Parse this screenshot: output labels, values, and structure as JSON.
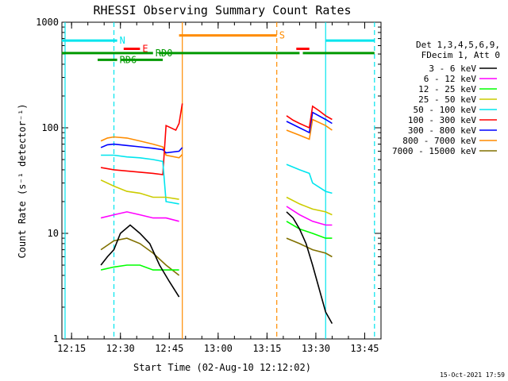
{
  "chart_data": {
    "type": "line",
    "title": "RHESSI Observing Summary Count Rates",
    "xlabel": "Start Time (02-Aug-10 12:12:02)",
    "ylabel": "Count Rate (s⁻¹ detector⁻¹)",
    "y_scale": "log",
    "ylim": [
      1,
      1000
    ],
    "xlim": [
      "12:12:02",
      "13:50:00"
    ],
    "x_ticks": [
      "12:15",
      "12:30",
      "12:45",
      "13:00",
      "13:15",
      "13:30",
      "13:45"
    ],
    "y_ticks": [
      "1",
      "10",
      "100",
      "1000"
    ],
    "legend_header": [
      "Det 1,3,4,5,6,9,",
      "FDecim 1, Att 0"
    ],
    "legend_position": "right",
    "footer_stamp": "15-Oct-2021 17:59",
    "flags": [
      {
        "label": "N",
        "color": "#00e5ee",
        "segments": [
          [
            "12:12",
            "12:29"
          ],
          [
            "13:33",
            "13:48"
          ]
        ],
        "y": 670
      },
      {
        "label": "E",
        "color": "#ff0000",
        "segments": [
          [
            "12:31",
            "12:36"
          ],
          [
            "13:24",
            "13:28"
          ]
        ],
        "y": 560
      },
      {
        "label": "S",
        "color": "#ff8c00",
        "segments": [
          [
            "12:48",
            "13:18"
          ]
        ],
        "y": 750
      },
      {
        "label": "RD0",
        "color": "#009900",
        "segments": [
          [
            "12:12",
            "12:40"
          ],
          [
            "12:42",
            "13:18"
          ],
          [
            "13:18",
            "13:25"
          ],
          [
            "13:26",
            "13:48"
          ]
        ],
        "y": 510
      },
      {
        "label": "RD6",
        "color": "#009900",
        "segments": [
          [
            "12:23",
            "12:29"
          ],
          [
            "12:30",
            "12:43"
          ]
        ],
        "y": 440
      }
    ],
    "vlines": [
      {
        "x": "12:13",
        "color": "#00e5ee",
        "style": "solid"
      },
      {
        "x": "12:28",
        "color": "#00e5ee",
        "style": "dashed"
      },
      {
        "x": "12:49",
        "color": "#ff8c00",
        "style": "solid"
      },
      {
        "x": "13:18",
        "color": "#ff8c00",
        "style": "dashed"
      },
      {
        "x": "13:33",
        "color": "#00e5ee",
        "style": "solid"
      },
      {
        "x": "13:48",
        "color": "#00e5ee",
        "style": "dashed"
      }
    ],
    "series": [
      {
        "name": "3 - 6 keV",
        "color": "#000000",
        "segments": [
          {
            "x": [
              "12:24",
              "12:26",
              "12:28",
              "12:30",
              "12:33",
              "12:36",
              "12:39",
              "12:42",
              "12:45",
              "12:48"
            ],
            "y": [
              5,
              6,
              7,
              10,
              12,
              10,
              8,
              5,
              3.5,
              2.5
            ]
          },
          {
            "x": [
              "13:21",
              "13:23",
              "13:25",
              "13:27",
              "13:29",
              "13:31",
              "13:33",
              "13:35"
            ],
            "y": [
              16,
              14,
              11,
              8,
              5,
              3,
              1.8,
              1.4
            ]
          }
        ]
      },
      {
        "name": "6 - 12 keV",
        "color": "#ff00ff",
        "segments": [
          {
            "x": [
              "12:24",
              "12:28",
              "12:32",
              "12:36",
              "12:40",
              "12:44",
              "12:48"
            ],
            "y": [
              14,
              15,
              16,
              15,
              14,
              14,
              13
            ]
          },
          {
            "x": [
              "13:21",
              "13:25",
              "13:29",
              "13:33",
              "13:35"
            ],
            "y": [
              18,
              15,
              13,
              12,
              12
            ]
          }
        ]
      },
      {
        "name": "12 - 25 keV",
        "color": "#00ff00",
        "segments": [
          {
            "x": [
              "12:24",
              "12:28",
              "12:32",
              "12:36",
              "12:40",
              "12:44",
              "12:48"
            ],
            "y": [
              4.5,
              4.8,
              5,
              5,
              4.5,
              4.5,
              4.5
            ]
          },
          {
            "x": [
              "13:21",
              "13:25",
              "13:29",
              "13:33",
              "13:35"
            ],
            "y": [
              13,
              11,
              10,
              9,
              9
            ]
          }
        ]
      },
      {
        "name": "25 - 50 keV",
        "color": "#cccc00",
        "segments": [
          {
            "x": [
              "12:24",
              "12:28",
              "12:32",
              "12:36",
              "12:40",
              "12:44",
              "12:48"
            ],
            "y": [
              32,
              28,
              25,
              24,
              22,
              22,
              21
            ]
          },
          {
            "x": [
              "13:21",
              "13:25",
              "13:29",
              "13:33",
              "13:35"
            ],
            "y": [
              22,
              19,
              17,
              16,
              15
            ]
          }
        ]
      },
      {
        "name": "50 - 100 keV",
        "color": "#00e5ee",
        "segments": [
          {
            "x": [
              "12:24",
              "12:28",
              "12:32",
              "12:36",
              "12:40",
              "12:43",
              "12:44",
              "12:48"
            ],
            "y": [
              55,
              55,
              53,
              52,
              50,
              48,
              20,
              19
            ]
          },
          {
            "x": [
              "13:21",
              "13:25",
              "13:28",
              "13:29",
              "13:33",
              "13:35"
            ],
            "y": [
              45,
              40,
              37,
              30,
              25,
              24
            ]
          }
        ]
      },
      {
        "name": "100 - 300 keV",
        "color": "#ff0000",
        "segments": [
          {
            "x": [
              "12:24",
              "12:28",
              "12:32",
              "12:36",
              "12:40",
              "12:43",
              "12:44",
              "12:47",
              "12:48",
              "12:49"
            ],
            "y": [
              42,
              40,
              39,
              38,
              37,
              36,
              105,
              95,
              110,
              170
            ]
          },
          {
            "x": [
              "13:21",
              "13:23",
              "13:25",
              "13:28",
              "13:29",
              "13:31",
              "13:33",
              "13:35"
            ],
            "y": [
              130,
              118,
              110,
              100,
              160,
              145,
              130,
              120
            ]
          }
        ]
      },
      {
        "name": "300 - 800 keV",
        "color": "#0000ff",
        "segments": [
          {
            "x": [
              "12:24",
              "12:26",
              "12:28",
              "12:32",
              "12:36",
              "12:40",
              "12:43",
              "12:44",
              "12:48",
              "12:49"
            ],
            "y": [
              65,
              69,
              70,
              68,
              66,
              64,
              62,
              58,
              60,
              65
            ]
          },
          {
            "x": [
              "13:21",
              "13:25",
              "13:28",
              "13:29",
              "13:33",
              "13:35"
            ],
            "y": [
              115,
              100,
              90,
              140,
              120,
              110
            ]
          }
        ]
      },
      {
        "name": "800 - 7000 keV",
        "color": "#ff8c00",
        "segments": [
          {
            "x": [
              "12:24",
              "12:26",
              "12:28",
              "12:32",
              "12:36",
              "12:40",
              "12:43",
              "12:44",
              "12:48",
              "12:49"
            ],
            "y": [
              75,
              80,
              82,
              80,
              75,
              70,
              66,
              55,
              52,
              56
            ]
          },
          {
            "x": [
              "13:21",
              "13:25",
              "13:28",
              "13:29",
              "13:33",
              "13:35"
            ],
            "y": [
              95,
              85,
              78,
              120,
              105,
              95
            ]
          }
        ]
      },
      {
        "name": "7000 - 15000 keV",
        "color": "#807000",
        "segments": [
          {
            "x": [
              "12:24",
              "12:28",
              "12:32",
              "12:36",
              "12:40",
              "12:44",
              "12:48"
            ],
            "y": [
              7,
              8.5,
              9,
              8,
              6.5,
              5,
              4
            ]
          },
          {
            "x": [
              "13:21",
              "13:25",
              "13:29",
              "13:33",
              "13:35"
            ],
            "y": [
              9,
              8,
              7,
              6.5,
              6
            ]
          }
        ]
      }
    ]
  }
}
